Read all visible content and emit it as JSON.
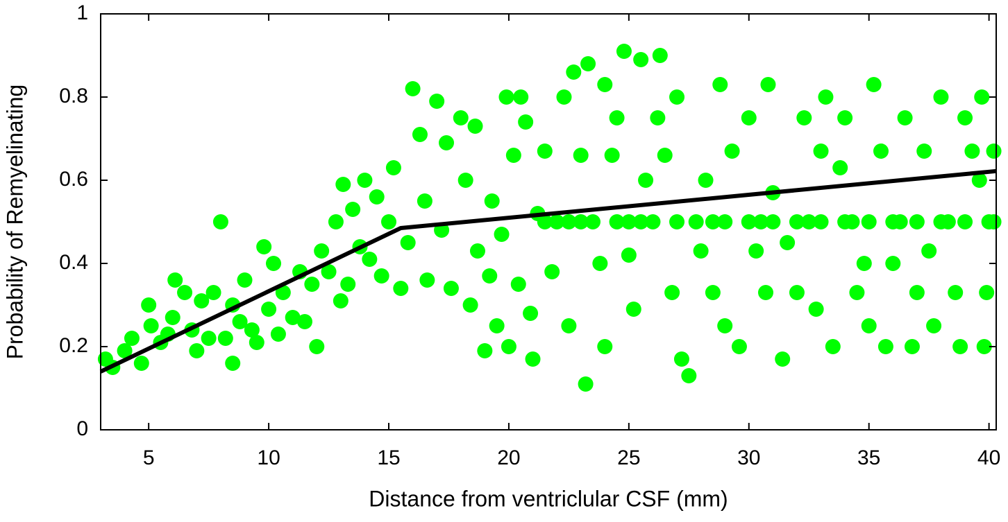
{
  "chart_data": {
    "type": "scatter",
    "xlabel": "Distance from ventriclular CSF (mm)",
    "ylabel": "Probability of Remyelinating",
    "xlim": [
      3,
      40.3
    ],
    "ylim": [
      0,
      1
    ],
    "xticks": [
      5,
      10,
      15,
      20,
      25,
      30,
      35,
      40
    ],
    "yticks": [
      0,
      0.2,
      0.4,
      0.6,
      0.8,
      1
    ],
    "series": [
      {
        "type": "scatter",
        "color": "#00ff00",
        "x": [
          3.2,
          3.5,
          4,
          4.3,
          4.7,
          5,
          5.1,
          5.5,
          5.8,
          6,
          6.1,
          6.5,
          6.8,
          7,
          7.2,
          7.5,
          7.7,
          8,
          8.2,
          8.5,
          8.5,
          8.8,
          9,
          9.3,
          9.5,
          9.8,
          10,
          10.2,
          10.4,
          10.6,
          11,
          11.3,
          11.5,
          11.8,
          12,
          12.2,
          12.5,
          12.8,
          13,
          13.1,
          13.3,
          13.5,
          13.8,
          14,
          14.2,
          14.5,
          14.7,
          15,
          15.2,
          15.5,
          15.8,
          16,
          16.3,
          16.5,
          16.6,
          17,
          17.2,
          17.4,
          17.6,
          18,
          18.2,
          18.4,
          18.6,
          18.7,
          19,
          19.2,
          19.3,
          19.5,
          19.7,
          19.9,
          20,
          20.2,
          20.4,
          20.5,
          20.7,
          20.9,
          21,
          21.2,
          21.5,
          21.8,
          22,
          22.3,
          22.5,
          22.7,
          23,
          23.2,
          23.3,
          23.5,
          23.8,
          24,
          24,
          24.3,
          24.5,
          24.8,
          25,
          25.2,
          25.5,
          25.7,
          26,
          26.2,
          26.3,
          26.5,
          26.8,
          27,
          27.2,
          27.5,
          27.8,
          28,
          28.2,
          28.5,
          28.8,
          29,
          29.3,
          29.6,
          30,
          30.3,
          30.5,
          30.7,
          30.8,
          31,
          31.4,
          31.6,
          32,
          32.3,
          32.5,
          32.8,
          33,
          33.2,
          33.5,
          33.8,
          34,
          34.3,
          34.5,
          34.8,
          35,
          35.2,
          35.5,
          35.7,
          36,
          36.3,
          36.5,
          36.8,
          37,
          37.3,
          37.5,
          37.7,
          38,
          38.3,
          38.6,
          38.8,
          39,
          39.3,
          39.6,
          39.7,
          40,
          39.8,
          39.9,
          40.2,
          21.5,
          22.5,
          23,
          24.5,
          25,
          25.5,
          27,
          28.5,
          29,
          30,
          31,
          32,
          33,
          34,
          35,
          36,
          37,
          38,
          39,
          40.2
        ],
        "y": [
          0.17,
          0.15,
          0.19,
          0.22,
          0.16,
          0.3,
          0.25,
          0.21,
          0.23,
          0.27,
          0.36,
          0.33,
          0.24,
          0.19,
          0.31,
          0.22,
          0.33,
          0.5,
          0.22,
          0.16,
          0.3,
          0.26,
          0.36,
          0.24,
          0.21,
          0.44,
          0.29,
          0.4,
          0.23,
          0.33,
          0.27,
          0.38,
          0.26,
          0.35,
          0.2,
          0.43,
          0.38,
          0.5,
          0.31,
          0.59,
          0.35,
          0.53,
          0.44,
          0.6,
          0.41,
          0.56,
          0.37,
          0.5,
          0.63,
          0.34,
          0.45,
          0.82,
          0.71,
          0.55,
          0.36,
          0.79,
          0.48,
          0.69,
          0.34,
          0.75,
          0.6,
          0.3,
          0.73,
          0.43,
          0.19,
          0.37,
          0.55,
          0.25,
          0.47,
          0.8,
          0.2,
          0.66,
          0.35,
          0.8,
          0.74,
          0.28,
          0.17,
          0.52,
          0.67,
          0.38,
          0.5,
          0.8,
          0.25,
          0.86,
          0.66,
          0.11,
          0.88,
          0.5,
          0.4,
          0.2,
          0.83,
          0.66,
          0.75,
          0.91,
          0.42,
          0.29,
          0.89,
          0.6,
          0.5,
          0.75,
          0.9,
          0.66,
          0.33,
          0.8,
          0.17,
          0.13,
          0.5,
          0.43,
          0.6,
          0.33,
          0.83,
          0.25,
          0.67,
          0.2,
          0.75,
          0.43,
          0.5,
          0.33,
          0.83,
          0.57,
          0.17,
          0.45,
          0.33,
          0.75,
          0.5,
          0.29,
          0.67,
          0.8,
          0.2,
          0.63,
          0.75,
          0.5,
          0.33,
          0.4,
          0.25,
          0.83,
          0.67,
          0.2,
          0.4,
          0.5,
          0.75,
          0.2,
          0.33,
          0.67,
          0.43,
          0.25,
          0.8,
          0.5,
          0.33,
          0.2,
          0.75,
          0.67,
          0.6,
          0.8,
          0.5,
          0.2,
          0.33,
          0.67,
          0.5,
          0.5,
          0.5,
          0.5,
          0.5,
          0.5,
          0.5,
          0.5,
          0.5,
          0.5,
          0.5,
          0.5,
          0.5,
          0.5,
          0.5,
          0.5,
          0.5,
          0.5,
          0.5,
          0.5
        ]
      },
      {
        "type": "line",
        "color": "#000000",
        "x": [
          3,
          15.5,
          40.3
        ],
        "y": [
          0.14,
          0.485,
          0.622
        ]
      }
    ]
  }
}
